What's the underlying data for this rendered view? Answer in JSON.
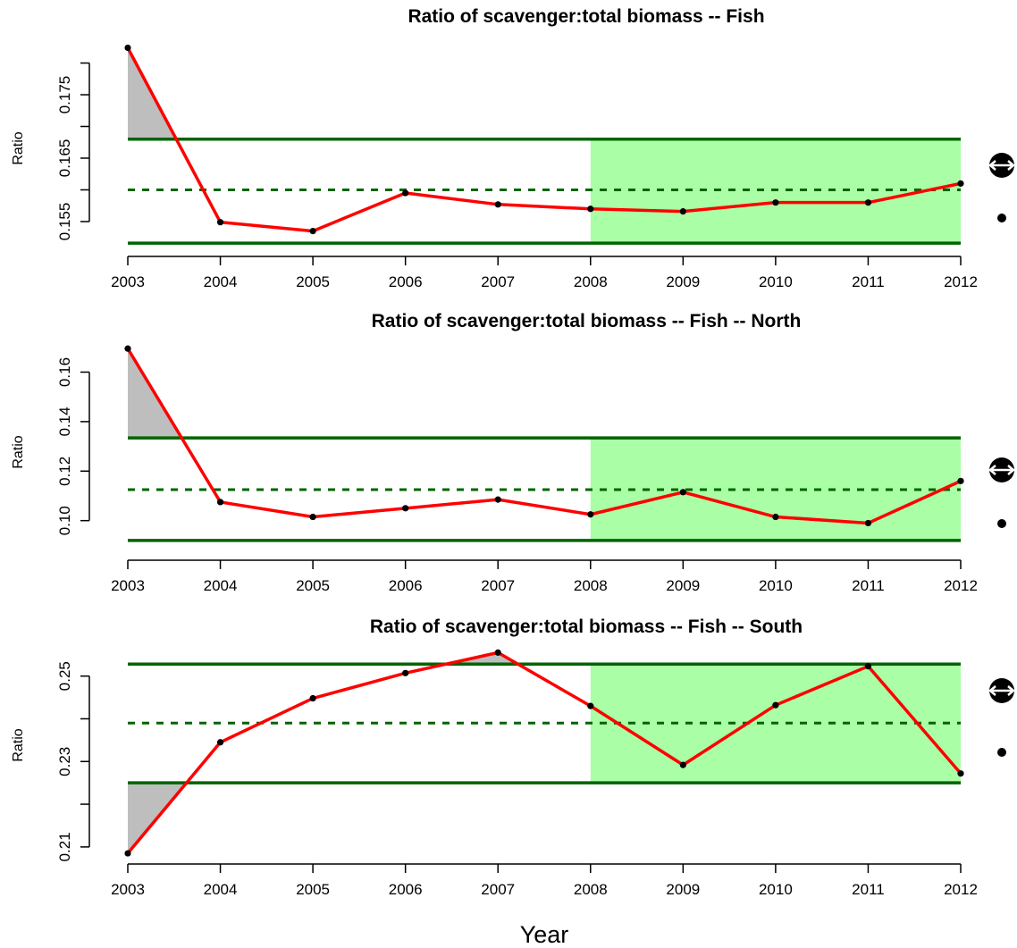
{
  "x_axis_label": "Year",
  "colors": {
    "series_line": "#ff0000",
    "threshold_line": "#006400",
    "highlight_fill": "#aaffa6",
    "exceed_fill": "#bebebe",
    "point": "#000000"
  },
  "chart_data": [
    {
      "type": "line",
      "title": "Ratio of scavenger:total biomass -- Fish",
      "ylabel": "Ratio",
      "xlabel": "",
      "x": [
        2003,
        2004,
        2005,
        2006,
        2007,
        2008,
        2009,
        2010,
        2011,
        2012
      ],
      "x_tick_labels": [
        "2003",
        "2004",
        "2005",
        "2006",
        "2007",
        "2008",
        "2009",
        "2010",
        "2011",
        "2012"
      ],
      "y": [
        0.1824,
        0.1549,
        0.1535,
        0.1595,
        0.1577,
        0.157,
        0.1566,
        0.158,
        0.158,
        0.161
      ],
      "y_ticks": [
        0.155,
        0.16,
        0.165,
        0.17,
        0.175,
        0.18
      ],
      "y_tick_labels": [
        "0.155",
        "",
        "0.165",
        "",
        "0.175",
        ""
      ],
      "ylim": [
        0.1495,
        0.1836
      ],
      "upper_threshold": 0.168,
      "mean": 0.16,
      "lower_threshold": 0.1516,
      "highlight_x": [
        2008,
        2012
      ],
      "grid": false,
      "legend": "none"
    },
    {
      "type": "line",
      "title": "Ratio of scavenger:total biomass -- Fish -- North",
      "ylabel": "Ratio",
      "xlabel": "",
      "x": [
        2003,
        2004,
        2005,
        2006,
        2007,
        2008,
        2009,
        2010,
        2011,
        2012
      ],
      "x_tick_labels": [
        "2003",
        "2004",
        "2005",
        "2006",
        "2007",
        "2008",
        "2009",
        "2010",
        "2011",
        "2012"
      ],
      "y": [
        0.1695,
        0.1075,
        0.1015,
        0.105,
        0.1085,
        0.1025,
        0.1115,
        0.1015,
        0.099,
        0.116
      ],
      "y_ticks": [
        0.1,
        0.12,
        0.14,
        0.16
      ],
      "y_tick_labels": [
        "0.10",
        "0.12",
        "0.14",
        "0.16"
      ],
      "ylim": [
        0.084,
        0.171
      ],
      "upper_threshold": 0.1334,
      "mean": 0.1125,
      "lower_threshold": 0.092,
      "highlight_x": [
        2008,
        2012
      ],
      "grid": false,
      "legend": "none"
    },
    {
      "type": "line",
      "title": "Ratio of scavenger:total biomass -- Fish -- South",
      "ylabel": "Ratio",
      "xlabel": "Year",
      "x": [
        2003,
        2004,
        2005,
        2006,
        2007,
        2008,
        2009,
        2010,
        2011,
        2012
      ],
      "x_tick_labels": [
        "2003",
        "2004",
        "2005",
        "2006",
        "2007",
        "2008",
        "2009",
        "2010",
        "2011",
        "2012"
      ],
      "y": [
        0.2085,
        0.2345,
        0.2448,
        0.2507,
        0.2555,
        0.243,
        0.2292,
        0.2432,
        0.2523,
        0.2272
      ],
      "y_ticks": [
        0.21,
        0.22,
        0.23,
        0.24,
        0.25
      ],
      "y_tick_labels": [
        "0.21",
        "",
        "0.23",
        "",
        "0.25"
      ],
      "ylim": [
        0.206,
        0.256
      ],
      "upper_threshold": 0.2528,
      "mean": 0.239,
      "lower_threshold": 0.225,
      "highlight_x": [
        2008,
        2012
      ],
      "grid": false,
      "legend": "none"
    }
  ]
}
